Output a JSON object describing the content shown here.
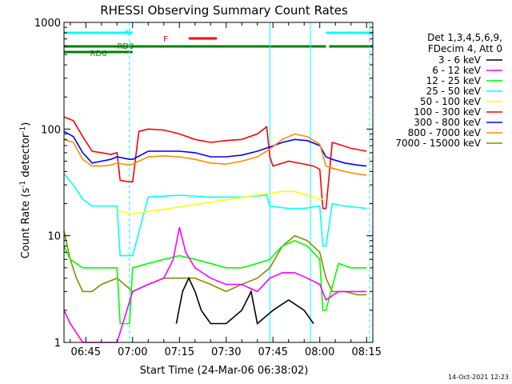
{
  "footer_stamp": "14-Oct-2021 12:23",
  "chart_data": {
    "type": "line",
    "title": "RHESSI Observing Summary Count Rates",
    "xlabel": "Start Time (24-Mar-06 06:38:02)",
    "ylabel_main": "Count Rate (s",
    "ylabel_sup1": "-1",
    "ylabel_mid": " detector",
    "ylabel_sup2": "-1",
    "ylabel_end": ")",
    "yscale": "log",
    "ylim": [
      1,
      1000
    ],
    "xlim": [
      "06:38",
      "08:17"
    ],
    "xticks": [
      "06:45",
      "07:00",
      "07:15",
      "07:30",
      "07:45",
      "08:00",
      "08:15"
    ],
    "yticks": [
      "1",
      "10",
      "100",
      "1000"
    ],
    "legend_title_1": "Det 1,3,4,5,6,9,",
    "legend_title_2": "FDecim 4, Att 0",
    "legend_position": "right",
    "legend": [
      {
        "label": "3 - 6 keV",
        "color": "#000000"
      },
      {
        "label": "6 - 12 keV",
        "color": "#ff00ff"
      },
      {
        "label": "12 - 25 keV",
        "color": "#00ff00"
      },
      {
        "label": "25 - 50 keV",
        "color": "#00ffff"
      },
      {
        "label": "50 - 100 keV",
        "color": "#ffff00"
      },
      {
        "label": "100 - 300 keV",
        "color": "#ff0000"
      },
      {
        "label": "300 - 800 keV",
        "color": "#0000ff"
      },
      {
        "label": "800 - 7000 keV",
        "color": "#ff8c00"
      },
      {
        "label": "7000 - 15000 keV",
        "color": "#8b8b00"
      }
    ],
    "flags": [
      {
        "label": "N",
        "color": "#00ffff",
        "segments": [
          [
            "06:38",
            "07:00"
          ],
          [
            "08:02",
            "08:17"
          ]
        ]
      },
      {
        "label": "F",
        "color": "#ff0000",
        "segments": [
          [
            "07:18",
            "07:27"
          ]
        ]
      },
      {
        "label": "RD0",
        "color": "#008000",
        "segments": [
          [
            "06:38",
            "07:44"
          ],
          [
            "07:44",
            "08:02"
          ],
          [
            "08:03",
            "08:17"
          ]
        ]
      },
      {
        "label": "RD6",
        "color": "#008000",
        "segments": [
          [
            "06:38",
            "07:00"
          ]
        ]
      }
    ],
    "vlines_cyan": [
      "06:59",
      "08:16"
    ],
    "vlines_solid_cyan": [
      "06:38",
      "07:44",
      "07:57"
    ],
    "series": [
      {
        "name": "100 - 300 keV",
        "color": "#ff0000",
        "x": [
          "06:38",
          "06:41",
          "06:44",
          "06:47",
          "06:50",
          "06:53",
          "06:55",
          "06:56",
          "06:59",
          "07:00",
          "07:02",
          "07:05",
          "07:10",
          "07:15",
          "07:20",
          "07:25",
          "07:30",
          "07:35",
          "07:40",
          "07:43",
          "07:44",
          "07:45",
          "07:50",
          "07:55",
          "07:58",
          "08:00",
          "08:01",
          "08:02",
          "08:04",
          "08:06",
          "08:10",
          "08:15"
        ],
        "y": [
          130,
          120,
          85,
          62,
          60,
          58,
          60,
          33,
          32,
          32,
          95,
          100,
          98,
          90,
          80,
          75,
          78,
          80,
          90,
          105,
          55,
          45,
          50,
          47,
          45,
          42,
          18,
          18,
          75,
          72,
          66,
          62
        ]
      },
      {
        "name": "300 - 800 keV",
        "color": "#0000ff",
        "x": [
          "06:38",
          "06:41",
          "06:44",
          "06:47",
          "06:50",
          "06:53",
          "06:55",
          "06:59",
          "07:00",
          "07:05",
          "07:10",
          "07:15",
          "07:20",
          "07:25",
          "07:30",
          "07:35",
          "07:40",
          "07:44",
          "07:48",
          "07:52",
          "07:56",
          "08:00",
          "08:02",
          "08:04",
          "08:08",
          "08:12",
          "08:15"
        ],
        "y": [
          95,
          85,
          60,
          48,
          50,
          52,
          55,
          52,
          52,
          62,
          62,
          62,
          60,
          55,
          55,
          57,
          62,
          68,
          75,
          80,
          78,
          70,
          55,
          52,
          48,
          46,
          45
        ]
      },
      {
        "name": "800 - 7000 keV",
        "color": "#ff8c00",
        "x": [
          "06:38",
          "06:41",
          "06:44",
          "06:47",
          "06:50",
          "06:53",
          "06:55",
          "06:59",
          "07:00",
          "07:05",
          "07:10",
          "07:15",
          "07:20",
          "07:25",
          "07:30",
          "07:35",
          "07:40",
          "07:44",
          "07:48",
          "07:52",
          "07:56",
          "08:00",
          "08:02",
          "08:04",
          "08:08",
          "08:12",
          "08:15"
        ],
        "y": [
          80,
          75,
          52,
          45,
          45,
          46,
          48,
          46,
          47,
          55,
          56,
          55,
          52,
          48,
          47,
          50,
          55,
          65,
          80,
          90,
          85,
          72,
          45,
          43,
          40,
          38,
          37
        ]
      },
      {
        "name": "25 - 50 keV",
        "color": "#00ffff",
        "x": [
          "06:38",
          "06:41",
          "06:44",
          "06:47",
          "06:50",
          "06:53",
          "06:55",
          "06:56",
          "06:59",
          "07:00",
          "07:05",
          "07:15",
          "07:25",
          "07:35",
          "07:43",
          "07:44",
          "07:50",
          "07:55",
          "08:00",
          "08:01",
          "08:02",
          "08:04",
          "08:08",
          "08:15"
        ],
        "y": [
          38,
          30,
          22,
          19,
          19,
          19,
          19,
          6.5,
          6.5,
          6.5,
          23,
          24,
          23,
          23,
          24,
          19,
          18,
          18,
          19,
          8,
          8,
          20,
          19,
          18
        ]
      },
      {
        "name": "50 - 100 keV",
        "color": "#ffff00",
        "x": [
          "06:55",
          "06:56",
          "06:59",
          "07:00",
          "07:44",
          "07:48",
          "07:52",
          "07:56",
          "08:00",
          "08:01"
        ],
        "y": [
          17,
          17,
          16,
          16,
          25,
          26,
          26,
          24,
          22,
          22
        ]
      },
      {
        "name": "7000 - 15000 keV",
        "color": "#8b8b00",
        "x": [
          "06:38",
          "06:40",
          "06:42",
          "06:44",
          "06:47",
          "06:50",
          "06:55",
          "07:00",
          "07:05",
          "07:10",
          "07:15",
          "07:20",
          "07:25",
          "07:30",
          "07:35",
          "07:40",
          "07:44",
          "07:48",
          "07:52",
          "07:56",
          "08:00",
          "08:02",
          "08:04",
          "08:08",
          "08:12",
          "08:15"
        ],
        "y": [
          11,
          6,
          4,
          3,
          3,
          3.5,
          4,
          3,
          3.5,
          4,
          4,
          4,
          3.5,
          3,
          3.5,
          4,
          5,
          8,
          10,
          9,
          7,
          4,
          3,
          3,
          2.8,
          2.8
        ]
      },
      {
        "name": "12 - 25 keV",
        "color": "#00ff00",
        "x": [
          "06:38",
          "06:40",
          "06:44",
          "06:50",
          "06:55",
          "06:56",
          "06:59",
          "07:00",
          "07:05",
          "07:10",
          "07:15",
          "07:20",
          "07:25",
          "07:30",
          "07:35",
          "07:40",
          "07:44",
          "07:48",
          "07:52",
          "07:56",
          "08:00",
          "08:01",
          "08:02",
          "08:06",
          "08:10",
          "08:15"
        ],
        "y": [
          8,
          6,
          5,
          5,
          5,
          1.5,
          1.5,
          5,
          5.5,
          6,
          6.5,
          6,
          5.5,
          5,
          5,
          5.5,
          6,
          8,
          9,
          8,
          6,
          2,
          2,
          5.5,
          5,
          5
        ]
      },
      {
        "name": "6 - 12 keV",
        "color": "#ff00ff",
        "x": [
          "06:38",
          "06:40",
          "06:44",
          "06:50",
          "06:55",
          "07:00",
          "07:05",
          "07:10",
          "07:13",
          "07:15",
          "07:17",
          "07:20",
          "07:25",
          "07:30",
          "07:35",
          "07:40",
          "07:44",
          "07:48",
          "07:52",
          "07:56",
          "08:00",
          "08:02",
          "08:06",
          "08:10",
          "08:15"
        ],
        "y": [
          2,
          1.5,
          1,
          1,
          1,
          3,
          3.5,
          4,
          6,
          12,
          7,
          5,
          4,
          3.5,
          3.5,
          3,
          4,
          4.5,
          4.5,
          4,
          3.5,
          2.5,
          3,
          3,
          3
        ]
      },
      {
        "name": "3 - 6 keV",
        "color": "#000000",
        "x": [
          "07:14",
          "07:16",
          "07:18",
          "07:20",
          "07:22",
          "07:25",
          "07:30",
          "07:35",
          "07:38",
          "07:40",
          "07:45",
          "07:50",
          "07:55",
          "07:58"
        ],
        "y": [
          1.5,
          3,
          4,
          3,
          2,
          1.5,
          1.5,
          2,
          3,
          1.5,
          2,
          2.5,
          2,
          1.5
        ]
      }
    ]
  }
}
